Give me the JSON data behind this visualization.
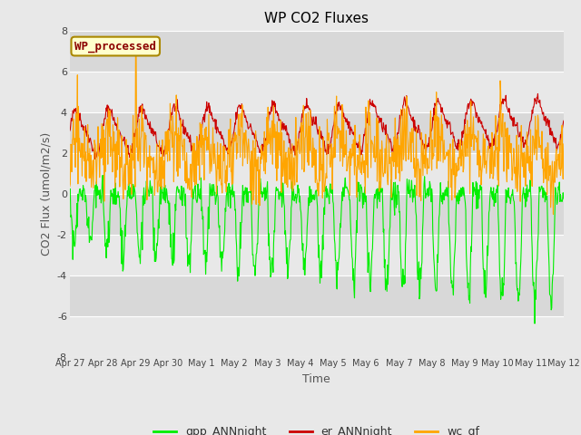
{
  "title": "WP CO2 Fluxes",
  "xlabel": "Time",
  "ylabel": "CO2 Flux (umol/m2/s)",
  "ylim": [
    -8,
    8
  ],
  "yticks": [
    -8,
    -6,
    -4,
    -2,
    0,
    2,
    4,
    6,
    8
  ],
  "fig_bg_color": "#e8e8e8",
  "plot_bg_color": "#e0e0e0",
  "band_color_light": "#e8e8e8",
  "band_color_dark": "#d8d8d8",
  "gpp_color": "#00ee00",
  "er_color": "#cc0000",
  "wc_color": "#ffa500",
  "legend_label": "WP_processed",
  "legend_label_color": "#8b0000",
  "line_width": 0.8,
  "n_points": 960,
  "tick_labels": [
    "Apr 27",
    "Apr 28",
    "Apr 29",
    "Apr 30",
    "May 1",
    "May 2",
    "May 3",
    "May 4",
    "May 5",
    "May 6",
    "May 7",
    "May 8",
    "May 9",
    "May 10",
    "May 11",
    "May 12"
  ],
  "tick_positions": [
    0,
    1,
    2,
    3,
    4,
    5,
    6,
    7,
    8,
    9,
    10,
    11,
    12,
    13,
    14,
    15
  ]
}
